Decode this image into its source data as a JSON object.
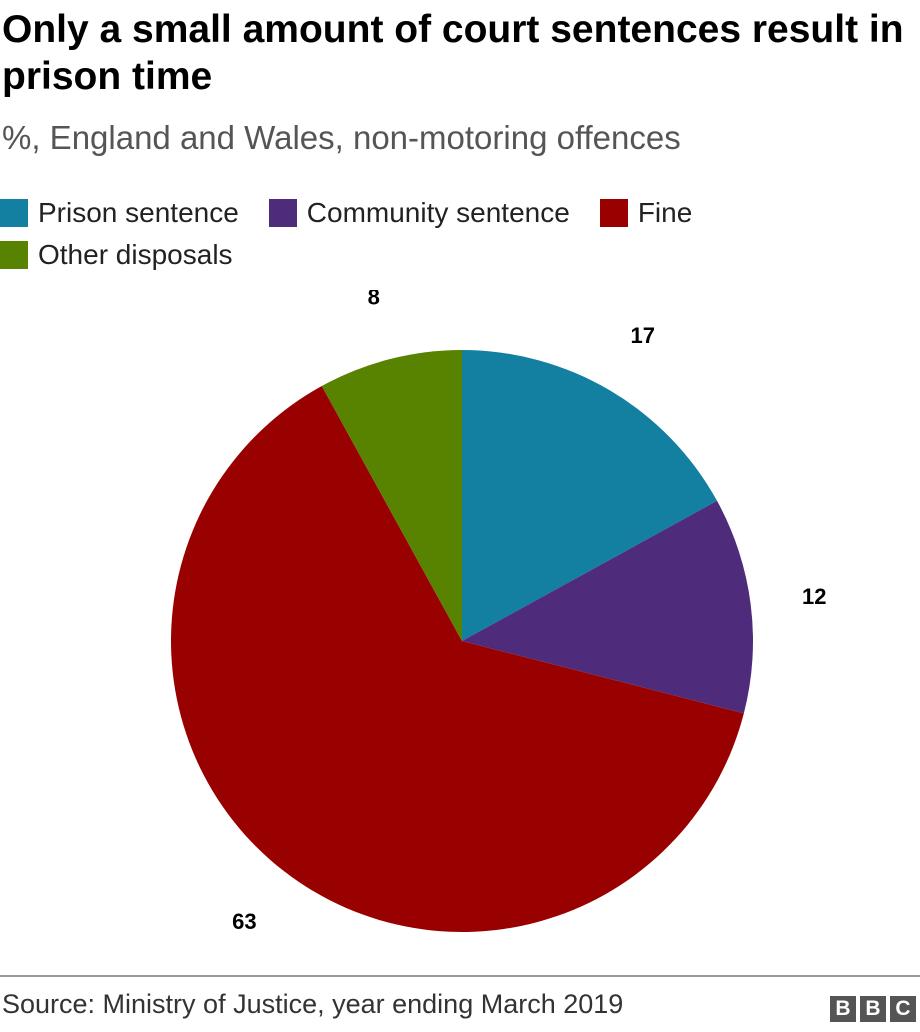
{
  "header": {
    "title": "Only a small amount of court sentences result in prison time",
    "subtitle": "%, England and Wales, non-motoring offences"
  },
  "footer": {
    "source": "Source: Ministry of Justice, year ending March 2019",
    "logo_letters": [
      "B",
      "B",
      "C"
    ]
  },
  "chart_data": {
    "type": "pie",
    "title": "Only a small amount of court sentences result in prison time",
    "subtitle": "%, England and Wales, non-motoring offences",
    "legend_placement": "top",
    "categories": [
      "Prison sentence",
      "Community sentence",
      "Fine",
      "Other disposals"
    ],
    "values": [
      17,
      12,
      63,
      8
    ],
    "colors": [
      "#1380A1",
      "#4F2B7C",
      "#990000",
      "#588300"
    ],
    "data_labels": [
      "17",
      "12",
      "63",
      "8"
    ],
    "start_angle": "12 o'clock",
    "direction": "clockwise"
  }
}
